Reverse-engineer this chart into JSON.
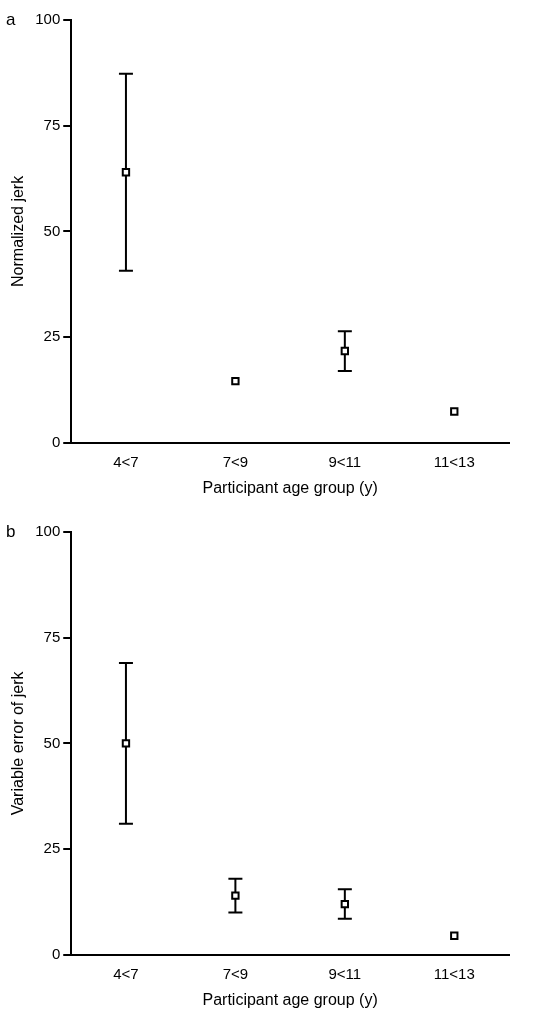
{
  "chart_data": [
    {
      "type": "scatter",
      "title": "a",
      "xlabel": "Participant age group (y)",
      "ylabel": "Normalized jerk",
      "categories": [
        "4<7",
        "7<9",
        "9<11",
        "11<13"
      ],
      "series": [
        {
          "color": "#000000",
          "values": [
            64,
            14.6,
            21.7,
            7.4
          ],
          "errors": [
            23.3,
            null,
            4.7,
            null
          ]
        }
      ],
      "ylim": [
        0,
        100
      ],
      "yticks": [
        0,
        25,
        50,
        75,
        100
      ],
      "grid": false,
      "legend": false,
      "marker": "square"
    },
    {
      "type": "scatter",
      "title": "b",
      "xlabel": "Participant age group (y)",
      "ylabel": "Variable error of jerk",
      "categories": [
        "4<7",
        "7<9",
        "9<11",
        "11<13"
      ],
      "series": [
        {
          "color": "#000000",
          "values": [
            50,
            14,
            12,
            4.5
          ],
          "errors": [
            19,
            4,
            3.5,
            null
          ]
        }
      ],
      "ylim": [
        0,
        100
      ],
      "yticks": [
        0,
        25,
        50,
        75,
        100
      ],
      "grid": false,
      "legend": false,
      "marker": "square"
    }
  ]
}
